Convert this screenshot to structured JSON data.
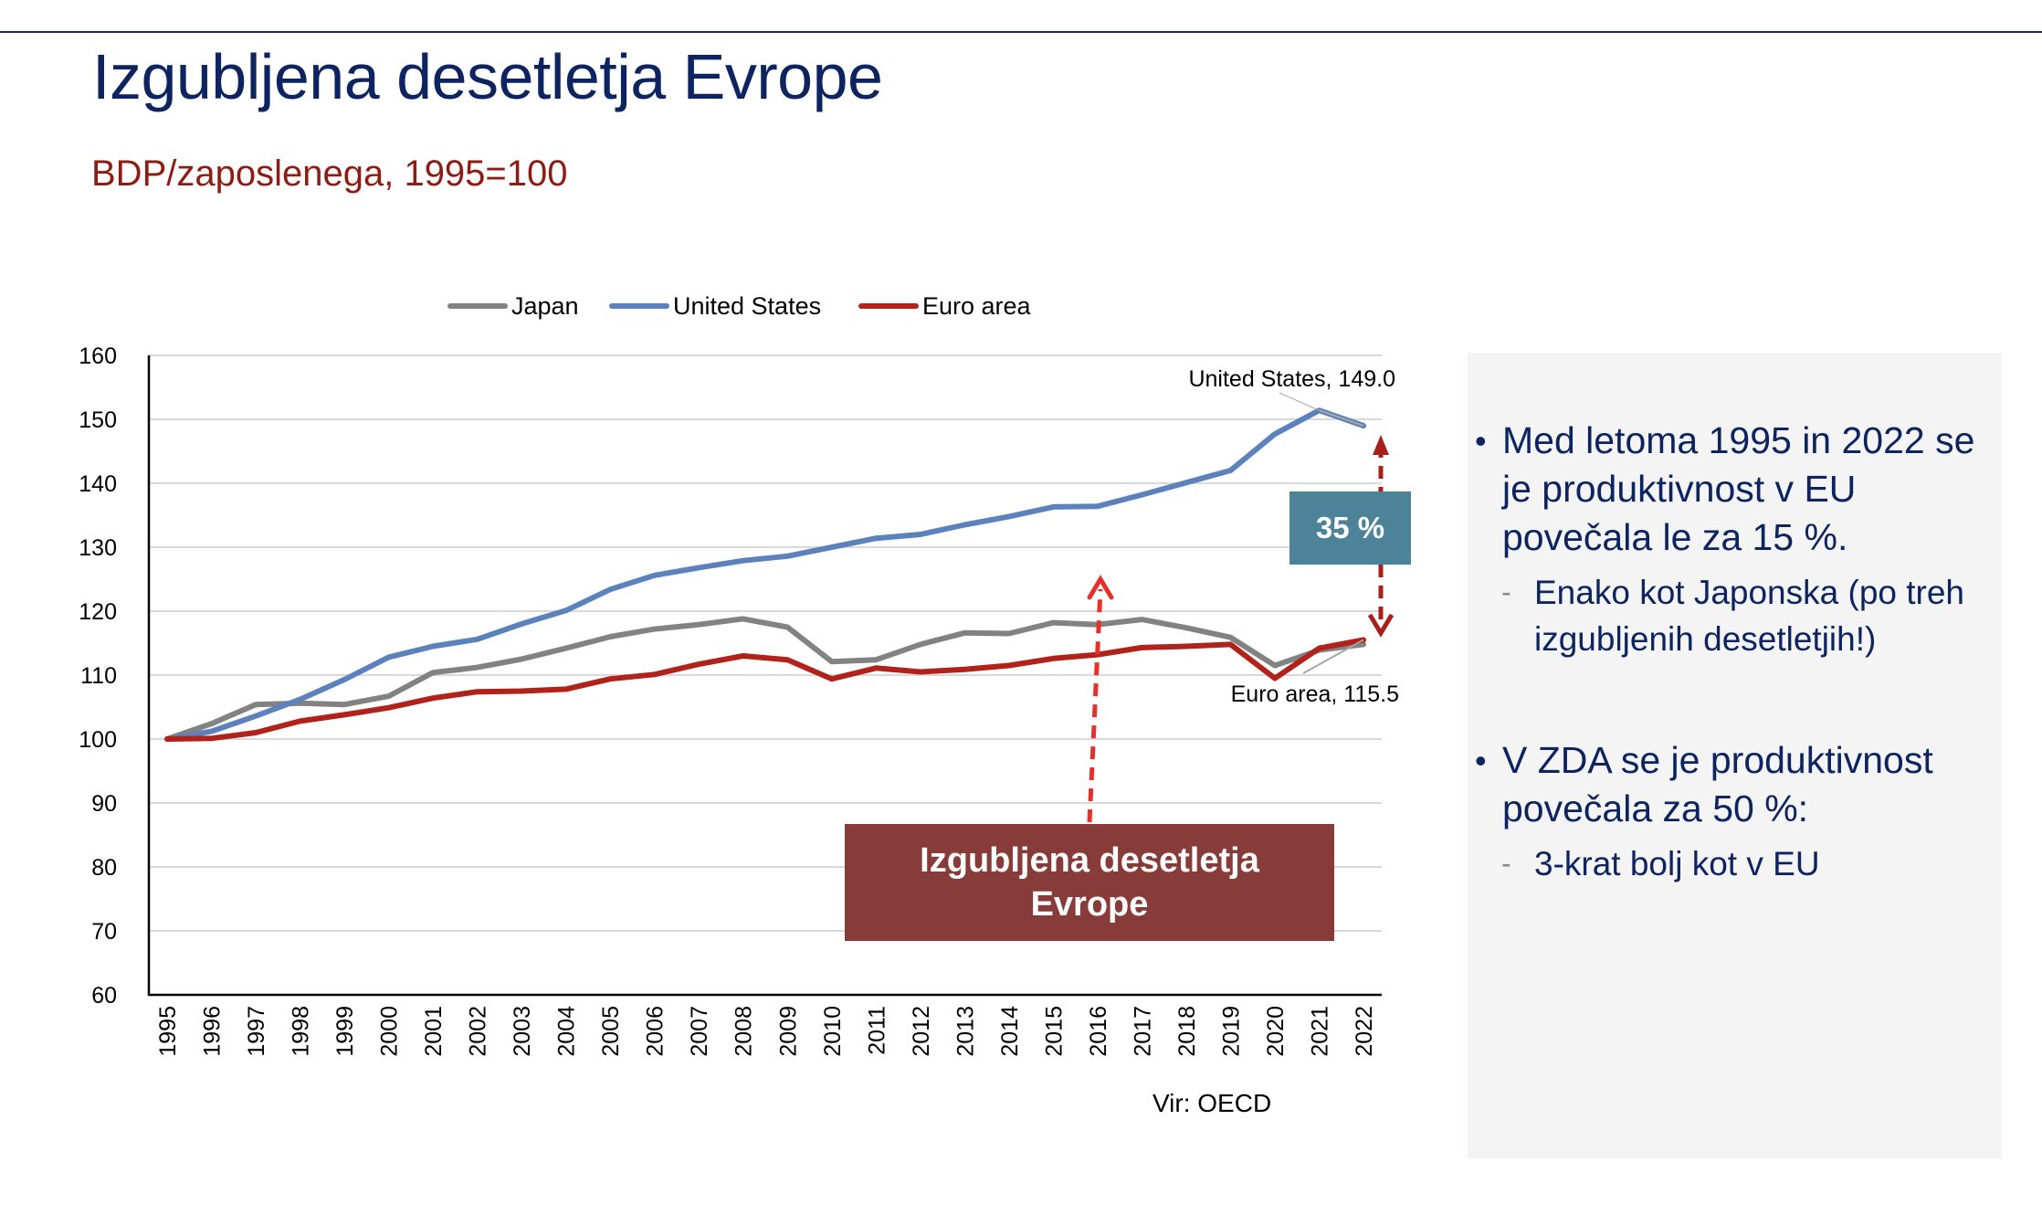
{
  "slide": {
    "title": "Izgubljena desetletja Evrope",
    "subtitle": "BDP/zaposlenega, 1995=100",
    "source": "Vir: OECD"
  },
  "callouts": {
    "gap_label": "35 %",
    "lost_decades_label": "Izgubljena desetletja Evrope",
    "lost_decades_line1": "Izgubljena desetletja",
    "lost_decades_line2": "Evrope"
  },
  "side_panel": {
    "bullets": [
      {
        "text": "Med letoma 1995 in 2022 se je produktivnost v EU povečala le za 15 %.",
        "sub": "Enako kot Japonska (po treh izgubljenih desetletjih!)"
      },
      {
        "text": "V ZDA se je produktivnost povečala za 50 %:",
        "sub": "3-krat bolj kot v EU"
      }
    ],
    "bullet_glyph": "•",
    "sub_glyph": "-"
  },
  "chart_data": {
    "type": "line",
    "title": "",
    "xlabel": "",
    "ylabel": "",
    "ylim": [
      60,
      160
    ],
    "yticks": [
      60,
      70,
      80,
      90,
      100,
      110,
      120,
      130,
      140,
      150,
      160
    ],
    "grid": true,
    "legend_position": "top-center",
    "categories": [
      "1995",
      "1996",
      "1997",
      "1998",
      "1999",
      "2000",
      "2001",
      "2002",
      "2003",
      "2004",
      "2005",
      "2006",
      "2007",
      "2008",
      "2009",
      "2010",
      "2011",
      "2012",
      "2013",
      "2014",
      "2015",
      "2016",
      "2017",
      "2018",
      "2019",
      "2020",
      "2021",
      "2022"
    ],
    "series": [
      {
        "name": "Japan",
        "color": "#828282",
        "values": [
          100,
          102.4,
          105.4,
          105.6,
          105.4,
          106.7,
          110.4,
          111.2,
          112.5,
          114.2,
          116.0,
          117.2,
          117.9,
          118.8,
          117.5,
          112.1,
          112.4,
          114.8,
          116.6,
          116.5,
          118.2,
          117.9,
          118.7,
          117.4,
          115.9,
          111.5,
          113.9,
          114.8
        ]
      },
      {
        "name": "United States",
        "color": "#5b82bd",
        "values": [
          100,
          101.2,
          103.6,
          106.2,
          109.3,
          112.8,
          114.5,
          115.6,
          118.0,
          120.1,
          123.4,
          125.6,
          126.8,
          127.9,
          128.6,
          130.0,
          131.4,
          132.0,
          133.5,
          134.8,
          136.3,
          136.4,
          138.2,
          140.1,
          142.0,
          147.7,
          151.4,
          149.0
        ]
      },
      {
        "name": "Euro area",
        "color": "#b0221a",
        "values": [
          100,
          100.1,
          101.0,
          102.8,
          103.8,
          104.9,
          106.4,
          107.4,
          107.5,
          107.8,
          109.4,
          110.1,
          111.7,
          113.0,
          112.4,
          109.4,
          111.1,
          110.5,
          110.9,
          111.5,
          112.6,
          113.2,
          114.3,
          114.5,
          114.8,
          109.5,
          114.2,
          115.5
        ]
      }
    ],
    "annotations": [
      {
        "text": "United States, 149.0",
        "series": "United States",
        "x": "2022",
        "value": 149.0
      },
      {
        "text": "Euro area, 115.5",
        "series": "Euro area",
        "x": "2022",
        "value": 115.5
      }
    ]
  }
}
